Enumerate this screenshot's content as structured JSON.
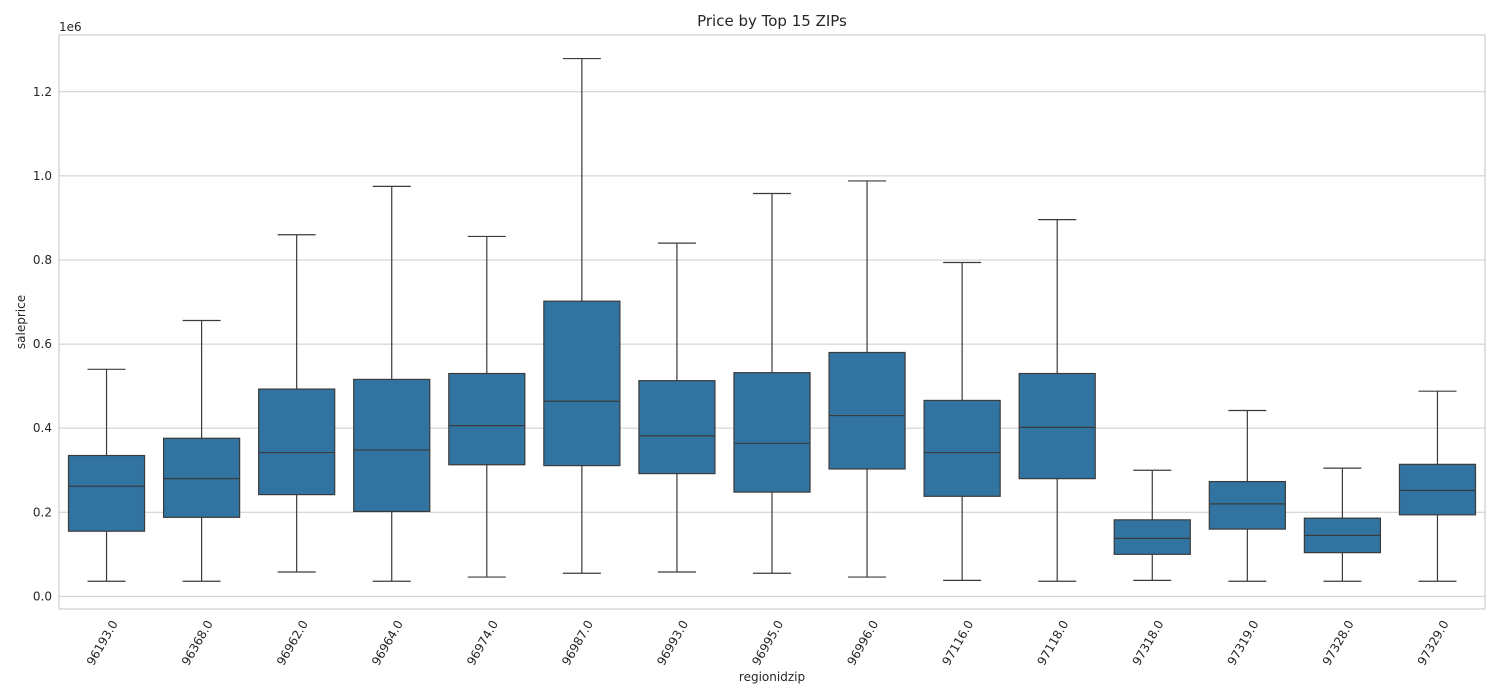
{
  "chart_data": {
    "type": "box",
    "title": "Price by Top 15 ZIPs",
    "xlabel": "regionidzip",
    "ylabel": "saleprice",
    "y_offset_label": "1e6",
    "y_scale": 1000000,
    "ylim": [
      -0.03,
      1.335
    ],
    "y_ticks": [
      0.0,
      0.2,
      0.4,
      0.6,
      0.8,
      1.0,
      1.2
    ],
    "y_tick_labels": [
      "0.0",
      "0.2",
      "0.4",
      "0.6",
      "0.8",
      "1.0",
      "1.2"
    ],
    "grid": true,
    "box_color": "#3274a1",
    "line_color": "#3b3b3b",
    "categories": [
      "96193.0",
      "96368.0",
      "96962.0",
      "96964.0",
      "96974.0",
      "96987.0",
      "96993.0",
      "96995.0",
      "96996.0",
      "97116.0",
      "97118.0",
      "97318.0",
      "97319.0",
      "97328.0",
      "97329.0"
    ],
    "boxes": [
      {
        "category": "96193.0",
        "whislo": 0.036,
        "q1": 0.155,
        "med": 0.262,
        "q3": 0.335,
        "whishi": 0.54
      },
      {
        "category": "96368.0",
        "whislo": 0.036,
        "q1": 0.188,
        "med": 0.28,
        "q3": 0.376,
        "whishi": 0.656
      },
      {
        "category": "96962.0",
        "whislo": 0.058,
        "q1": 0.242,
        "med": 0.342,
        "q3": 0.493,
        "whishi": 0.86
      },
      {
        "category": "96964.0",
        "whislo": 0.036,
        "q1": 0.202,
        "med": 0.348,
        "q3": 0.516,
        "whishi": 0.975
      },
      {
        "category": "96974.0",
        "whislo": 0.046,
        "q1": 0.313,
        "med": 0.406,
        "q3": 0.53,
        "whishi": 0.856
      },
      {
        "category": "96987.0",
        "whislo": 0.055,
        "q1": 0.311,
        "med": 0.464,
        "q3": 0.702,
        "whishi": 1.279
      },
      {
        "category": "96993.0",
        "whislo": 0.058,
        "q1": 0.292,
        "med": 0.382,
        "q3": 0.513,
        "whishi": 0.84
      },
      {
        "category": "96995.0",
        "whislo": 0.055,
        "q1": 0.248,
        "med": 0.364,
        "q3": 0.532,
        "whishi": 0.958
      },
      {
        "category": "96996.0",
        "whislo": 0.046,
        "q1": 0.303,
        "med": 0.43,
        "q3": 0.58,
        "whishi": 0.988
      },
      {
        "category": "97116.0",
        "whislo": 0.038,
        "q1": 0.238,
        "med": 0.342,
        "q3": 0.466,
        "whishi": 0.794
      },
      {
        "category": "97118.0",
        "whislo": 0.036,
        "q1": 0.28,
        "med": 0.402,
        "q3": 0.53,
        "whishi": 0.896
      },
      {
        "category": "97318.0",
        "whislo": 0.038,
        "q1": 0.1,
        "med": 0.138,
        "q3": 0.182,
        "whishi": 0.3
      },
      {
        "category": "97319.0",
        "whislo": 0.036,
        "q1": 0.16,
        "med": 0.22,
        "q3": 0.273,
        "whishi": 0.442
      },
      {
        "category": "97328.0",
        "whislo": 0.036,
        "q1": 0.104,
        "med": 0.145,
        "q3": 0.186,
        "whishi": 0.305
      },
      {
        "category": "97329.0",
        "whislo": 0.036,
        "q1": 0.194,
        "med": 0.252,
        "q3": 0.314,
        "whishi": 0.488
      }
    ]
  }
}
